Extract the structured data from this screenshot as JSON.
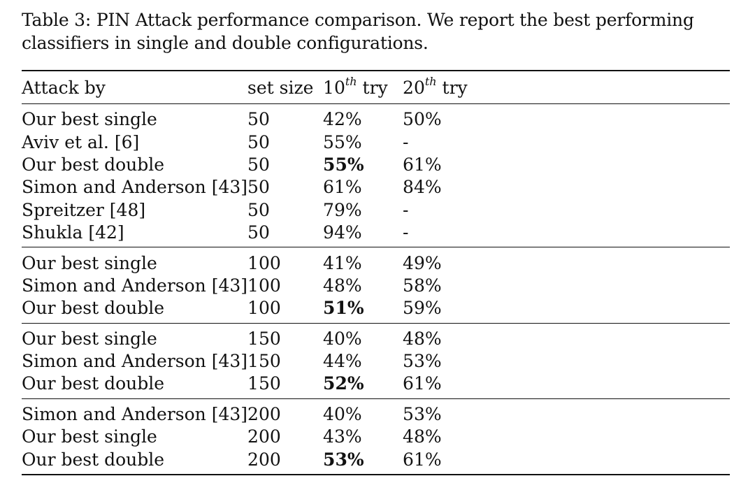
{
  "caption": "Table 3: PIN Attack performance comparison. We report the best performing classifiers in single and double configurations.",
  "headers": {
    "attack_by": "Attack by",
    "set_size": "set size",
    "tenth": {
      "base": "10",
      "sup": "th",
      "tail": " try"
    },
    "twentieth": {
      "base": "20",
      "sup": "th",
      "tail": " try"
    }
  },
  "groups": [
    {
      "rows": [
        {
          "attack": "Our best single",
          "set_size": "50",
          "try10": "42%",
          "try10_bold": false,
          "try20": "50%"
        },
        {
          "attack": "Aviv et al. [6]",
          "set_size": "50",
          "try10": "55%",
          "try10_bold": false,
          "try20": "-"
        },
        {
          "attack": "Our best double",
          "set_size": "50",
          "try10": "55%",
          "try10_bold": true,
          "try20": "61%"
        },
        {
          "attack": "Simon and Anderson [43]",
          "set_size": "50",
          "try10": "61%",
          "try10_bold": false,
          "try20": "84%"
        },
        {
          "attack": "Spreitzer [48]",
          "set_size": "50",
          "try10": "79%",
          "try10_bold": false,
          "try20": "-"
        },
        {
          "attack": "Shukla [42]",
          "set_size": "50",
          "try10": "94%",
          "try10_bold": false,
          "try20": "-"
        }
      ]
    },
    {
      "rows": [
        {
          "attack": "Our best single",
          "set_size": "100",
          "try10": "41%",
          "try10_bold": false,
          "try20": "49%"
        },
        {
          "attack": "Simon and Anderson [43]",
          "set_size": "100",
          "try10": "48%",
          "try10_bold": false,
          "try20": "58%"
        },
        {
          "attack": "Our best double",
          "set_size": "100",
          "try10": "51%",
          "try10_bold": true,
          "try20": "59%"
        }
      ]
    },
    {
      "rows": [
        {
          "attack": "Our best single",
          "set_size": "150",
          "try10": "40%",
          "try10_bold": false,
          "try20": "48%"
        },
        {
          "attack": "Simon and Anderson [43]",
          "set_size": "150",
          "try10": "44%",
          "try10_bold": false,
          "try20": "53%"
        },
        {
          "attack": "Our best double",
          "set_size": "150",
          "try10": "52%",
          "try10_bold": true,
          "try20": "61%"
        }
      ]
    },
    {
      "rows": [
        {
          "attack": "Simon and Anderson [43]",
          "set_size": "200",
          "try10": "40%",
          "try10_bold": false,
          "try20": "53%"
        },
        {
          "attack": "Our best single",
          "set_size": "200",
          "try10": "43%",
          "try10_bold": false,
          "try20": "48%"
        },
        {
          "attack": "Our best double",
          "set_size": "200",
          "try10": "53%",
          "try10_bold": true,
          "try20": "61%"
        }
      ]
    }
  ]
}
